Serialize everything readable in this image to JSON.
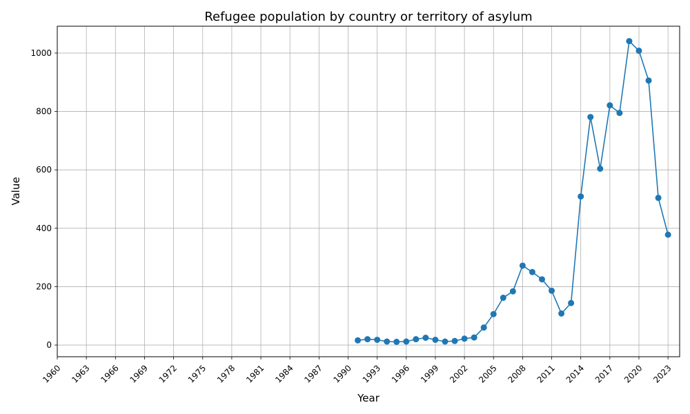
{
  "colors": {
    "series": "#1f77b4",
    "grid": "#b0b0b0",
    "axis": "#000000"
  },
  "chart_data": {
    "type": "line",
    "title": "Refugee population by country or territory of asylum",
    "xlabel": "Year",
    "ylabel": "Value",
    "xlim": [
      1960,
      2023
    ],
    "ylim": [
      -40,
      1092
    ],
    "grid": true,
    "marker": "circle",
    "x_ticks": [
      "1960",
      "1963",
      "1966",
      "1969",
      "1972",
      "1975",
      "1978",
      "1981",
      "1984",
      "1987",
      "1990",
      "1993",
      "1996",
      "1999",
      "2002",
      "2005",
      "2008",
      "2011",
      "2014",
      "2017",
      "2020",
      "2023"
    ],
    "y_ticks": [
      "0",
      "200",
      "400",
      "600",
      "800",
      "1000"
    ],
    "x": [
      1991,
      1992,
      1993,
      1994,
      1995,
      1996,
      1997,
      1998,
      1999,
      2000,
      2001,
      2002,
      2003,
      2004,
      2005,
      2006,
      2007,
      2008,
      2009,
      2010,
      2011,
      2012,
      2013,
      2014,
      2015,
      2016,
      2017,
      2018,
      2019,
      2020,
      2021,
      2022,
      2023
    ],
    "series": [
      {
        "values": [
          16,
          20,
          18,
          12,
          11,
          12,
          20,
          25,
          18,
          12,
          14,
          22,
          26,
          60,
          106,
          162,
          184,
          272,
          250,
          225,
          186,
          108,
          144,
          509,
          781,
          604,
          821,
          795,
          1041,
          1008,
          906,
          504,
          378
        ]
      }
    ]
  }
}
